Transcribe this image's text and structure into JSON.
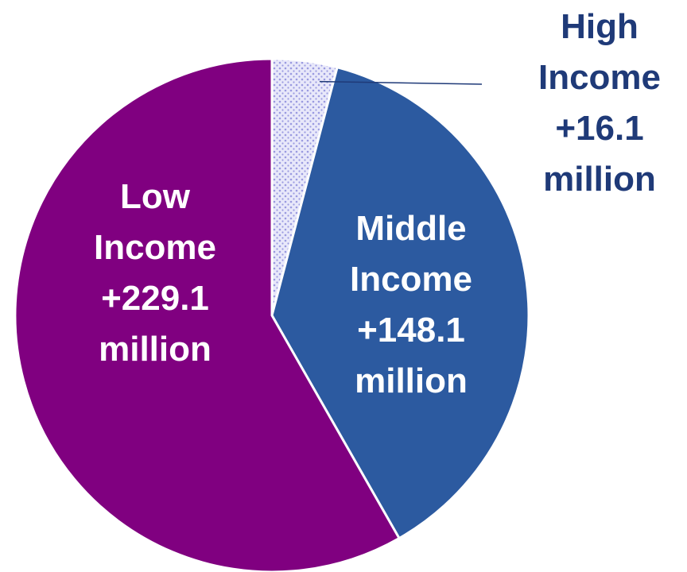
{
  "chart_data": {
    "type": "pie",
    "title": "",
    "unit": "million",
    "slices": [
      {
        "key": "high",
        "name": "High Income",
        "value": 16.1,
        "label_lines": [
          "High",
          "Income",
          "+16.1",
          "million"
        ],
        "color": "#e8e8fa",
        "pattern": "dotted",
        "dot_color": "#9a9ae0",
        "label_color": "#1f3a78",
        "label_position": "outside-right"
      },
      {
        "key": "middle",
        "name": "Middle Income",
        "value": 148.1,
        "label_lines": [
          "Middle",
          "Income",
          "+148.1",
          "million"
        ],
        "color": "#2c5aa0",
        "label_color": "#ffffff",
        "label_position": "inside"
      },
      {
        "key": "low",
        "name": "Low Income",
        "value": 229.1,
        "label_lines": [
          "Low",
          "Income",
          "+229.1",
          "million"
        ],
        "color": "#800080",
        "label_color": "#ffffff",
        "label_position": "inside"
      }
    ],
    "start_angle": "top",
    "direction": "clockwise",
    "legend": "none"
  }
}
